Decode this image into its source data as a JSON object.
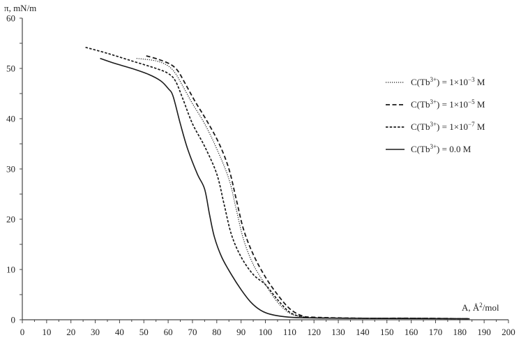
{
  "chart_data": {
    "type": "line",
    "title": "",
    "xlabel": "A, Å²/mol",
    "ylabel": "π, mN/m",
    "xlim": [
      0,
      200
    ],
    "ylim": [
      0,
      60
    ],
    "x_ticks": [
      0,
      10,
      20,
      30,
      40,
      50,
      60,
      70,
      80,
      90,
      100,
      110,
      120,
      130,
      140,
      150,
      160,
      170,
      180,
      190,
      200
    ],
    "y_ticks": [
      0,
      10,
      20,
      30,
      40,
      50,
      60
    ],
    "grid": false,
    "legend_position": "right-upper",
    "series": [
      {
        "name": "C(Tb3+) = 1×10−3 M",
        "legend": {
          "prefix": "C(Tb",
          "sup": "3+",
          "middle": ") = 1×10",
          "exp": "−3",
          "suffix": " M"
        },
        "style": "dotted",
        "points": [
          [
            47,
            52
          ],
          [
            55,
            51.5
          ],
          [
            60,
            50.5
          ],
          [
            63,
            49
          ],
          [
            66,
            46.5
          ],
          [
            70,
            43
          ],
          [
            75,
            39
          ],
          [
            80,
            34
          ],
          [
            85,
            28
          ],
          [
            88,
            22
          ],
          [
            91,
            16
          ],
          [
            95,
            11
          ],
          [
            100,
            7
          ],
          [
            105,
            3.5
          ],
          [
            110,
            1.3
          ],
          [
            115,
            0.6
          ],
          [
            120,
            0.4
          ],
          [
            140,
            0.3
          ],
          [
            160,
            0.3
          ],
          [
            184,
            0.2
          ]
        ]
      },
      {
        "name": "C(Tb3+) = 1×10−5 M",
        "legend": {
          "prefix": "C(Tb",
          "sup": "3+",
          "middle": ") = 1×10",
          "exp": "−5",
          "suffix": " M"
        },
        "style": "dashed-long",
        "points": [
          [
            51,
            52.5
          ],
          [
            56,
            51.8
          ],
          [
            61,
            50.8
          ],
          [
            64,
            49.5
          ],
          [
            67,
            47
          ],
          [
            71,
            43.5
          ],
          [
            76,
            39.5
          ],
          [
            81,
            35
          ],
          [
            85,
            30
          ],
          [
            88,
            24
          ],
          [
            91,
            18
          ],
          [
            95,
            13
          ],
          [
            100,
            8.5
          ],
          [
            105,
            5
          ],
          [
            110,
            2.2
          ],
          [
            115,
            0.8
          ],
          [
            120,
            0.5
          ],
          [
            140,
            0.3
          ],
          [
            160,
            0.3
          ],
          [
            184,
            0.2
          ]
        ]
      },
      {
        "name": "C(Tb3+) = 1×10−7 M",
        "legend": {
          "prefix": "C(Tb",
          "sup": "3+",
          "middle": ") = 1×10",
          "exp": "−7",
          "suffix": " M"
        },
        "style": "dashed-short",
        "points": [
          [
            26,
            54.2
          ],
          [
            35,
            53
          ],
          [
            45,
            51.5
          ],
          [
            55,
            50
          ],
          [
            60,
            49
          ],
          [
            63,
            47.5
          ],
          [
            66,
            44
          ],
          [
            70,
            39
          ],
          [
            75,
            34.5
          ],
          [
            80,
            29
          ],
          [
            83,
            23
          ],
          [
            86,
            17
          ],
          [
            90,
            12.5
          ],
          [
            95,
            9
          ],
          [
            100,
            7
          ],
          [
            105,
            4
          ],
          [
            110,
            1.5
          ],
          [
            115,
            0.6
          ],
          [
            120,
            0.4
          ],
          [
            140,
            0.3
          ],
          [
            160,
            0.3
          ],
          [
            184,
            0.2
          ]
        ]
      },
      {
        "name": "C(Tb3+) = 0.0 M",
        "legend": {
          "prefix": "C(Tb",
          "sup": "3+",
          "middle": ") = 0.0 M",
          "exp": "",
          "suffix": ""
        },
        "style": "solid",
        "points": [
          [
            32,
            52
          ],
          [
            38,
            51
          ],
          [
            45,
            50
          ],
          [
            52,
            48.8
          ],
          [
            57,
            47.5
          ],
          [
            60,
            46
          ],
          [
            62,
            44.5
          ],
          [
            65,
            39
          ],
          [
            68,
            34
          ],
          [
            72,
            29
          ],
          [
            75,
            26
          ],
          [
            77,
            21
          ],
          [
            79,
            16.5
          ],
          [
            82,
            12.5
          ],
          [
            86,
            9
          ],
          [
            90,
            6
          ],
          [
            94,
            3.5
          ],
          [
            98,
            1.9
          ],
          [
            102,
            1.1
          ],
          [
            108,
            0.6
          ],
          [
            115,
            0.4
          ],
          [
            130,
            0.3
          ],
          [
            150,
            0.25
          ],
          [
            184,
            0.2
          ]
        ]
      }
    ]
  },
  "colors": {
    "axis": "#444444",
    "line": "#1a1a1a",
    "text": "#222222",
    "background": "#ffffff"
  }
}
